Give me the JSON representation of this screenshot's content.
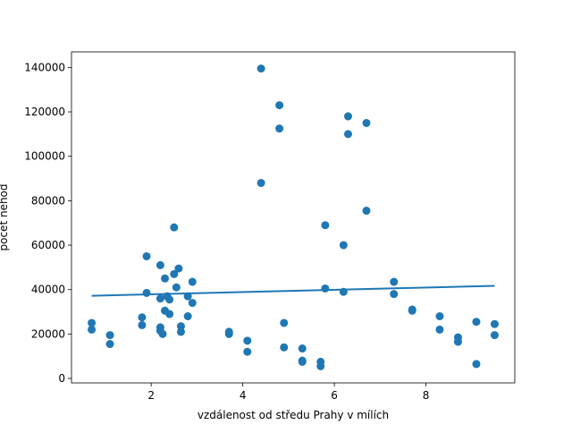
{
  "chart_data": {
    "type": "scatter",
    "title": "",
    "xlabel": "vzdálenost od středu Prahy v mílích",
    "ylabel": "počet nehod",
    "xlim": [
      0.26,
      9.94
    ],
    "ylim": [
      -2000,
      147000
    ],
    "x_ticks": [
      2,
      4,
      6,
      8
    ],
    "x_tick_labels": [
      "2",
      "4",
      "6",
      "8"
    ],
    "y_ticks": [
      0,
      20000,
      40000,
      60000,
      80000,
      100000,
      120000,
      140000
    ],
    "y_tick_labels": [
      "0",
      "20000",
      "40000",
      "60000",
      "80000",
      "100000",
      "120000",
      "140000"
    ],
    "grid": false,
    "legend": "none",
    "colors": {
      "points": "#1f77b4",
      "trend": "#1f77b4"
    },
    "points": [
      {
        "x": 0.7,
        "y": 25000
      },
      {
        "x": 0.7,
        "y": 22000
      },
      {
        "x": 1.1,
        "y": 19500
      },
      {
        "x": 1.1,
        "y": 15500
      },
      {
        "x": 1.8,
        "y": 27500
      },
      {
        "x": 1.8,
        "y": 24000
      },
      {
        "x": 1.9,
        "y": 55000
      },
      {
        "x": 1.9,
        "y": 38500
      },
      {
        "x": 2.2,
        "y": 51000
      },
      {
        "x": 2.2,
        "y": 36000
      },
      {
        "x": 2.2,
        "y": 23000
      },
      {
        "x": 2.2,
        "y": 21500
      },
      {
        "x": 2.25,
        "y": 20000
      },
      {
        "x": 2.3,
        "y": 45000
      },
      {
        "x": 2.3,
        "y": 30500
      },
      {
        "x": 2.35,
        "y": 37000
      },
      {
        "x": 2.4,
        "y": 35500
      },
      {
        "x": 2.4,
        "y": 29000
      },
      {
        "x": 2.5,
        "y": 68000
      },
      {
        "x": 2.5,
        "y": 47000
      },
      {
        "x": 2.55,
        "y": 41000
      },
      {
        "x": 2.6,
        "y": 49500
      },
      {
        "x": 2.65,
        "y": 23500
      },
      {
        "x": 2.65,
        "y": 21000
      },
      {
        "x": 2.8,
        "y": 37000
      },
      {
        "x": 2.8,
        "y": 28000
      },
      {
        "x": 2.9,
        "y": 43500
      },
      {
        "x": 2.9,
        "y": 34000
      },
      {
        "x": 3.7,
        "y": 21000
      },
      {
        "x": 3.7,
        "y": 20000
      },
      {
        "x": 4.1,
        "y": 17000
      },
      {
        "x": 4.1,
        "y": 12000
      },
      {
        "x": 4.4,
        "y": 139500
      },
      {
        "x": 4.4,
        "y": 88000
      },
      {
        "x": 4.8,
        "y": 123000
      },
      {
        "x": 4.8,
        "y": 112500
      },
      {
        "x": 4.9,
        "y": 25000
      },
      {
        "x": 4.9,
        "y": 14000
      },
      {
        "x": 5.3,
        "y": 13500
      },
      {
        "x": 5.3,
        "y": 8000
      },
      {
        "x": 5.3,
        "y": 7500
      },
      {
        "x": 5.7,
        "y": 7500
      },
      {
        "x": 5.7,
        "y": 5500
      },
      {
        "x": 5.8,
        "y": 69000
      },
      {
        "x": 5.8,
        "y": 40500
      },
      {
        "x": 6.2,
        "y": 60000
      },
      {
        "x": 6.2,
        "y": 39000
      },
      {
        "x": 6.3,
        "y": 118000
      },
      {
        "x": 6.3,
        "y": 110000
      },
      {
        "x": 6.7,
        "y": 115000
      },
      {
        "x": 6.7,
        "y": 75500
      },
      {
        "x": 7.3,
        "y": 43500
      },
      {
        "x": 7.3,
        "y": 38000
      },
      {
        "x": 7.7,
        "y": 31000
      },
      {
        "x": 7.7,
        "y": 30500
      },
      {
        "x": 8.3,
        "y": 28000
      },
      {
        "x": 8.3,
        "y": 22000
      },
      {
        "x": 8.7,
        "y": 18500
      },
      {
        "x": 8.7,
        "y": 16500
      },
      {
        "x": 9.1,
        "y": 25500
      },
      {
        "x": 9.1,
        "y": 6500
      },
      {
        "x": 9.5,
        "y": 24500
      },
      {
        "x": 9.5,
        "y": 19500
      }
    ],
    "trend_line": {
      "x": [
        0.7,
        9.5
      ],
      "y": [
        37200,
        41700
      ]
    }
  }
}
